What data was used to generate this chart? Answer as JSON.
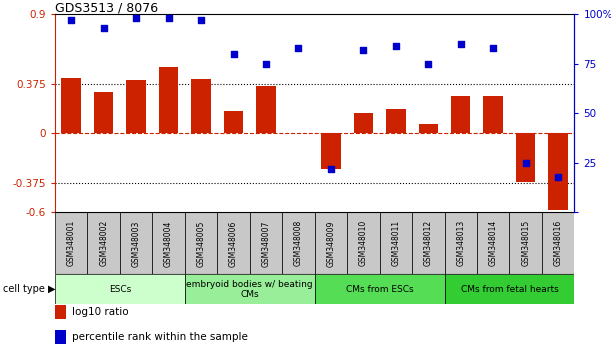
{
  "title": "GDS3513 / 8076",
  "samples": [
    "GSM348001",
    "GSM348002",
    "GSM348003",
    "GSM348004",
    "GSM348005",
    "GSM348006",
    "GSM348007",
    "GSM348008",
    "GSM348009",
    "GSM348010",
    "GSM348011",
    "GSM348012",
    "GSM348013",
    "GSM348014",
    "GSM348015",
    "GSM348016"
  ],
  "log10_ratio": [
    0.42,
    0.31,
    0.4,
    0.5,
    0.41,
    0.17,
    0.36,
    0.0,
    -0.27,
    0.15,
    0.18,
    0.07,
    0.28,
    0.28,
    -0.37,
    -0.58
  ],
  "percentile_rank": [
    97,
    93,
    98,
    98,
    97,
    80,
    75,
    83,
    22,
    82,
    84,
    75,
    85,
    83,
    25,
    18
  ],
  "ylim_left": [
    -0.6,
    0.9
  ],
  "ylim_right": [
    0,
    100
  ],
  "yticks_left": [
    -0.6,
    -0.375,
    0,
    0.375,
    0.9
  ],
  "yticks_right": [
    0,
    25,
    50,
    75,
    100
  ],
  "hlines": [
    0.375,
    -0.375
  ],
  "bar_color": "#cc2200",
  "dot_color": "#0000cc",
  "cell_type_groups": [
    {
      "label": "ESCs",
      "start": 0,
      "end": 3,
      "color": "#ccffcc"
    },
    {
      "label": "embryoid bodies w/ beating\nCMs",
      "start": 4,
      "end": 7,
      "color": "#99ee99"
    },
    {
      "label": "CMs from ESCs",
      "start": 8,
      "end": 11,
      "color": "#55dd55"
    },
    {
      "label": "CMs from fetal hearts",
      "start": 12,
      "end": 15,
      "color": "#33cc33"
    }
  ],
  "zero_line_color": "#cc2200",
  "legend_items": [
    {
      "label": "log10 ratio",
      "color": "#cc2200"
    },
    {
      "label": "percentile rank within the sample",
      "color": "#0000cc"
    }
  ],
  "sample_bg_color": "#c8c8c8",
  "bar_width": 0.6
}
